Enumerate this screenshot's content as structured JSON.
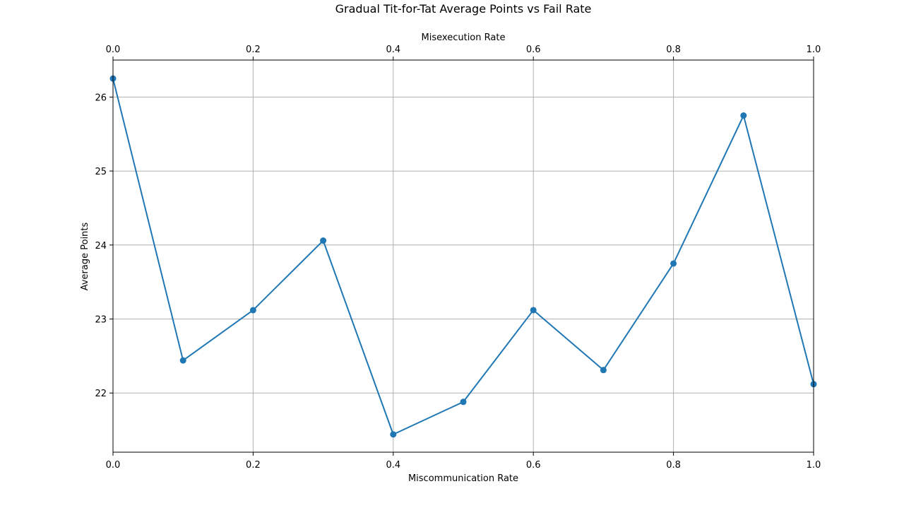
{
  "chart_data": {
    "type": "line",
    "title": "Gradual Tit-for-Tat Average Points vs Fail Rate",
    "xlabel": "Miscommunication Rate",
    "x2label": "Misexecution Rate",
    "ylabel": "Average Points",
    "xlim": [
      0.0,
      1.0
    ],
    "ylim": [
      21.2,
      26.5
    ],
    "x_ticks": [
      0.0,
      0.2,
      0.4,
      0.6,
      0.8,
      1.0
    ],
    "x_tick_labels": [
      "0.0",
      "0.2",
      "0.4",
      "0.6",
      "0.8",
      "1.0"
    ],
    "x2_ticks": [
      0.0,
      0.2,
      0.4,
      0.6,
      0.8,
      1.0
    ],
    "x2_tick_labels": [
      "0.0",
      "0.2",
      "0.4",
      "0.6",
      "0.8",
      "1.0"
    ],
    "y_ticks": [
      22,
      23,
      24,
      25,
      26
    ],
    "y_tick_labels": [
      "22",
      "23",
      "24",
      "25",
      "26"
    ],
    "grid": true,
    "series": [
      {
        "color": "#1f77b4",
        "marker": "circle",
        "x": [
          0.0,
          0.1,
          0.2,
          0.3,
          0.4,
          0.5,
          0.6,
          0.7,
          0.8,
          0.9,
          1.0
        ],
        "y": [
          26.25,
          22.44,
          23.12,
          24.06,
          21.44,
          21.88,
          23.12,
          22.31,
          23.75,
          25.75,
          22.12
        ]
      }
    ]
  }
}
